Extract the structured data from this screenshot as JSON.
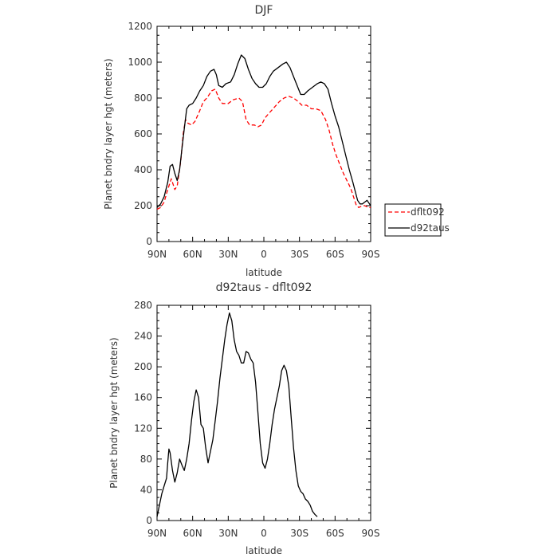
{
  "chart_data": [
    {
      "type": "line",
      "title": "DJF",
      "xlabel": "latitude",
      "ylabel": "Planet bndry layer hgt (meters)",
      "xlim": [
        90,
        -90
      ],
      "ylim": [
        0,
        1200
      ],
      "x_ticks": [
        90,
        60,
        30,
        0,
        -30,
        -60,
        -90
      ],
      "x_tick_labels": [
        "90N",
        "60N",
        "30N",
        "0",
        "30S",
        "60S",
        "90S"
      ],
      "y_ticks": [
        0,
        200,
        400,
        600,
        800,
        1000,
        1200
      ],
      "y_tick_labels": [
        "0",
        "200",
        "400",
        "600",
        "800",
        "1000",
        "1200"
      ],
      "grid": false,
      "legend_position": "right",
      "series": [
        {
          "name": "dflt092",
          "color": "#ff0000",
          "dash": "dashed",
          "points": [
            [
              90,
              180
            ],
            [
              87,
              190
            ],
            [
              84,
              220
            ],
            [
              81,
              290
            ],
            [
              78,
              350
            ],
            [
              75,
              290
            ],
            [
              73,
              310
            ],
            [
              70,
              450
            ],
            [
              68,
              600
            ],
            [
              66,
              680
            ],
            [
              64,
              660
            ],
            [
              61,
              650
            ],
            [
              58,
              670
            ],
            [
              54,
              730
            ],
            [
              51,
              780
            ],
            [
              48,
              800
            ],
            [
              44,
              840
            ],
            [
              41,
              850
            ],
            [
              38,
              800
            ],
            [
              35,
              770
            ],
            [
              30,
              770
            ],
            [
              26,
              790
            ],
            [
              21,
              800
            ],
            [
              18,
              780
            ],
            [
              15,
              680
            ],
            [
              12,
              650
            ],
            [
              8,
              650
            ],
            [
              5,
              640
            ],
            [
              2,
              650
            ],
            [
              -1,
              690
            ],
            [
              -5,
              720
            ],
            [
              -9,
              750
            ],
            [
              -13,
              780
            ],
            [
              -17,
              800
            ],
            [
              -21,
              810
            ],
            [
              -25,
              800
            ],
            [
              -29,
              780
            ],
            [
              -32,
              760
            ],
            [
              -36,
              760
            ],
            [
              -40,
              740
            ],
            [
              -44,
              740
            ],
            [
              -48,
              730
            ],
            [
              -52,
              680
            ],
            [
              -55,
              620
            ],
            [
              -58,
              540
            ],
            [
              -61,
              480
            ],
            [
              -64,
              430
            ],
            [
              -67,
              380
            ],
            [
              -70,
              340
            ],
            [
              -73,
              300
            ],
            [
              -76,
              240
            ],
            [
              -78,
              200
            ],
            [
              -80,
              190
            ],
            [
              -83,
              200
            ],
            [
              -85,
              200
            ],
            [
              -88,
              190
            ],
            [
              -90,
              190
            ]
          ]
        },
        {
          "name": "d92taus",
          "color": "#000000",
          "dash": "solid",
          "points": [
            [
              90,
              190
            ],
            [
              87,
              210
            ],
            [
              84,
              250
            ],
            [
              81,
              330
            ],
            [
              79,
              420
            ],
            [
              77,
              430
            ],
            [
              75,
              380
            ],
            [
              73,
              340
            ],
            [
              71,
              400
            ],
            [
              69,
              520
            ],
            [
              67,
              630
            ],
            [
              65,
              740
            ],
            [
              63,
              760
            ],
            [
              60,
              770
            ],
            [
              57,
              800
            ],
            [
              54,
              840
            ],
            [
              51,
              870
            ],
            [
              48,
              920
            ],
            [
              45,
              950
            ],
            [
              42,
              960
            ],
            [
              40,
              930
            ],
            [
              38,
              870
            ],
            [
              35,
              860
            ],
            [
              32,
              880
            ],
            [
              28,
              890
            ],
            [
              25,
              930
            ],
            [
              22,
              990
            ],
            [
              19,
              1040
            ],
            [
              16,
              1020
            ],
            [
              13,
              960
            ],
            [
              10,
              910
            ],
            [
              7,
              880
            ],
            [
              4,
              860
            ],
            [
              1,
              860
            ],
            [
              -2,
              880
            ],
            [
              -5,
              920
            ],
            [
              -8,
              950
            ],
            [
              -12,
              970
            ],
            [
              -16,
              990
            ],
            [
              -19,
              1000
            ],
            [
              -22,
              970
            ],
            [
              -25,
              920
            ],
            [
              -28,
              870
            ],
            [
              -31,
              820
            ],
            [
              -34,
              820
            ],
            [
              -37,
              840
            ],
            [
              -41,
              860
            ],
            [
              -45,
              880
            ],
            [
              -48,
              890
            ],
            [
              -51,
              880
            ],
            [
              -54,
              850
            ],
            [
              -57,
              770
            ],
            [
              -60,
              700
            ],
            [
              -63,
              640
            ],
            [
              -66,
              560
            ],
            [
              -69,
              480
            ],
            [
              -72,
              400
            ],
            [
              -75,
              330
            ],
            [
              -77,
              280
            ],
            [
              -79,
              230
            ],
            [
              -81,
              210
            ],
            [
              -83,
              210
            ],
            [
              -85,
              220
            ],
            [
              -87,
              230
            ],
            [
              -90,
              200
            ]
          ]
        }
      ]
    },
    {
      "type": "line",
      "title": "d92taus - dflt092",
      "xlabel": "latitude",
      "ylabel": "Planet bndry layer hgt (meters)",
      "xlim": [
        90,
        -90
      ],
      "ylim": [
        0,
        280
      ],
      "x_ticks": [
        90,
        60,
        30,
        0,
        -30,
        -60,
        -90
      ],
      "x_tick_labels": [
        "90N",
        "60N",
        "30N",
        "0",
        "30S",
        "60S",
        "90S"
      ],
      "y_ticks": [
        0,
        40,
        80,
        120,
        160,
        200,
        240,
        280
      ],
      "y_tick_labels": [
        "0",
        "40",
        "80",
        "120",
        "160",
        "200",
        "240",
        "280"
      ],
      "grid": false,
      "series": [
        {
          "color": "#000000",
          "dash": "solid",
          "points": [
            [
              90,
              5
            ],
            [
              88,
              20
            ],
            [
              86,
              35
            ],
            [
              84,
              45
            ],
            [
              82,
              55
            ],
            [
              81,
              75
            ],
            [
              80,
              93
            ],
            [
              79,
              88
            ],
            [
              77,
              65
            ],
            [
              75,
              50
            ],
            [
              73,
              62
            ],
            [
              71,
              80
            ],
            [
              69,
              72
            ],
            [
              67,
              65
            ],
            [
              65,
              80
            ],
            [
              63,
              100
            ],
            [
              61,
              130
            ],
            [
              59,
              155
            ],
            [
              57,
              170
            ],
            [
              55,
              160
            ],
            [
              53,
              125
            ],
            [
              51,
              120
            ],
            [
              49,
              95
            ],
            [
              47,
              75
            ],
            [
              45,
              90
            ],
            [
              43,
              105
            ],
            [
              41,
              130
            ],
            [
              39,
              155
            ],
            [
              37,
              185
            ],
            [
              35,
              210
            ],
            [
              33,
              235
            ],
            [
              31,
              255
            ],
            [
              29,
              270
            ],
            [
              27,
              260
            ],
            [
              25,
              235
            ],
            [
              23,
              220
            ],
            [
              21,
              215
            ],
            [
              19,
              205
            ],
            [
              17,
              205
            ],
            [
              15,
              220
            ],
            [
              13,
              218
            ],
            [
              11,
              210
            ],
            [
              9,
              205
            ],
            [
              7,
              180
            ],
            [
              5,
              140
            ],
            [
              3,
              100
            ],
            [
              1,
              75
            ],
            [
              -1,
              68
            ],
            [
              -3,
              80
            ],
            [
              -5,
              100
            ],
            [
              -7,
              125
            ],
            [
              -9,
              145
            ],
            [
              -11,
              160
            ],
            [
              -13,
              175
            ],
            [
              -15,
              195
            ],
            [
              -17,
              202
            ],
            [
              -19,
              195
            ],
            [
              -21,
              175
            ],
            [
              -23,
              135
            ],
            [
              -25,
              95
            ],
            [
              -27,
              65
            ],
            [
              -29,
              45
            ],
            [
              -31,
              38
            ],
            [
              -33,
              35
            ],
            [
              -35,
              28
            ],
            [
              -37,
              25
            ],
            [
              -39,
              20
            ],
            [
              -41,
              12
            ],
            [
              -43,
              8
            ],
            [
              -45,
              5
            ]
          ]
        }
      ]
    }
  ],
  "legend": {
    "items": [
      {
        "label": "dflt092"
      },
      {
        "label": "d92taus"
      }
    ]
  }
}
